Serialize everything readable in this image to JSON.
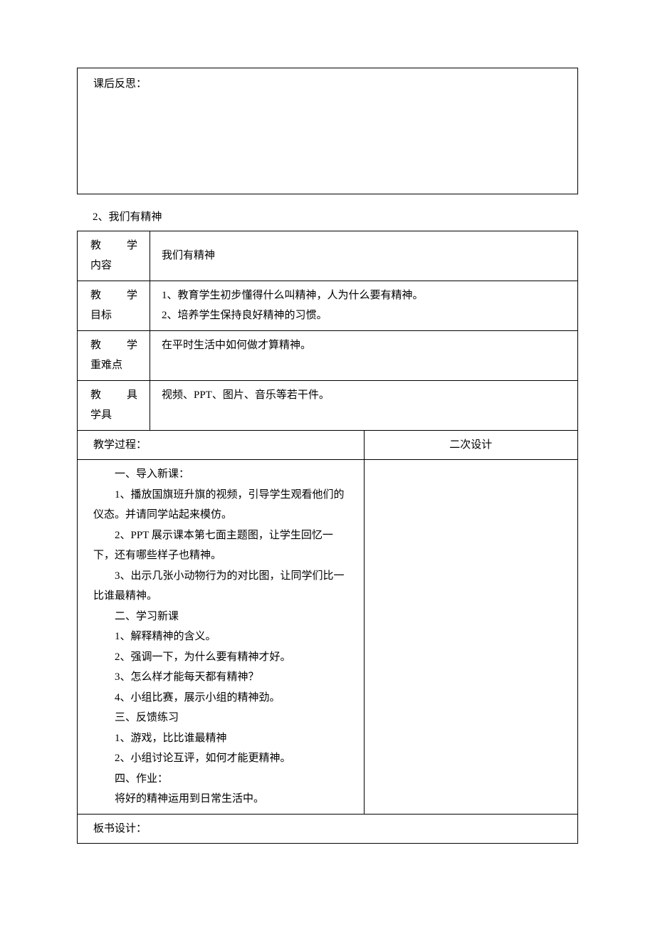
{
  "reflection": {
    "title": "课后反思："
  },
  "section_heading": "2、我们有精神",
  "headers": {
    "content": "教　学内容",
    "content_label_top": "教　学",
    "content_label_bottom": "内容",
    "goal_label_top": "教　学",
    "goal_label_bottom": "目标",
    "difficulty_label_top": "教　学",
    "difficulty_label_bottom": "重难点",
    "tools_label_top": "教　具",
    "tools_label_bottom": "学具",
    "process": "教学过程：",
    "redesign": "二次设计",
    "board_design": "板书设计："
  },
  "rows": {
    "content_value": "我们有精神",
    "goal_line1": "1、教育学生初步懂得什么叫精神，人为什么要有精神。",
    "goal_line2": "2、培养学生保持良好精神的习惯。",
    "difficulty_value": "在平时生活中如何做才算精神。",
    "tools_value": "视频、PPT、图片、音乐等若干件。"
  },
  "process_lines": [
    "一、导入新课：",
    "1、播放国旗班升旗的视频，引导学生观看他们的仪态。并请同学站起来模仿。",
    "2、PPT 展示课本第七面主题图，让学生回忆一下，还有哪些样子也精神。",
    "3、出示几张小动物行为的对比图，让同学们比一比谁最精神。",
    "二、学习新课",
    "1、解释精神的含义。",
    "2、强调一下，为什么要有精神才好。",
    "3、怎么样才能每天都有精神？",
    "4、小组比赛，展示小组的精神劲。",
    "三、反馈练习",
    "1、游戏，比比谁最精神",
    "2、小组讨论互评，如何才能更精神。",
    "四、作业：",
    "将好的精神运用到日常生活中。"
  ]
}
